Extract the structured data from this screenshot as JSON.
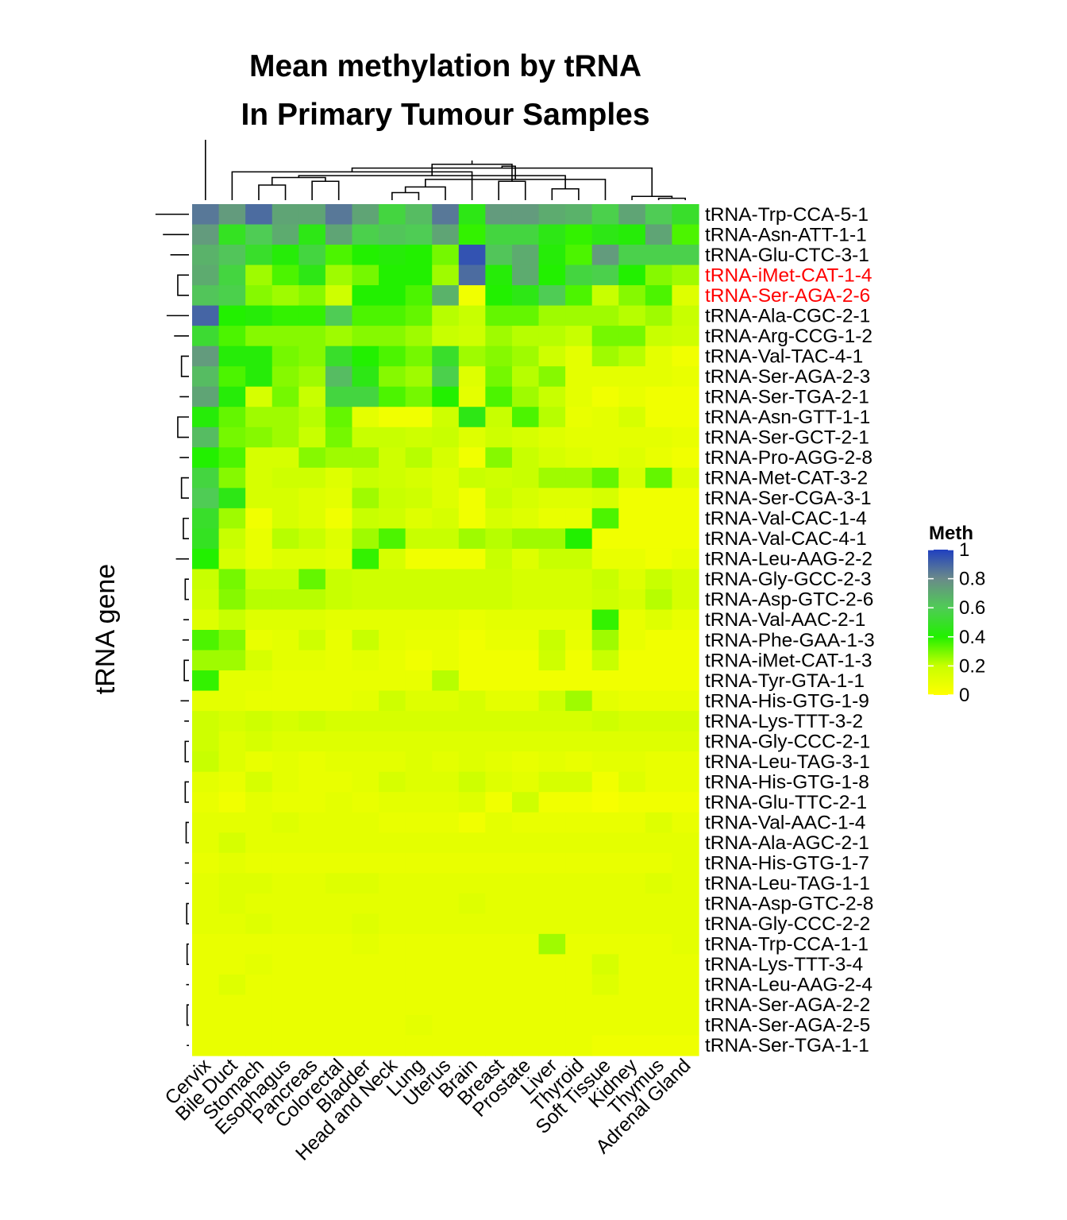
{
  "chart_data": {
    "type": "heatmap",
    "title": "Mean methylation by tRNA",
    "subtitle": "In Primary Tumour Samples",
    "xlabel": "",
    "ylabel": "tRNA gene",
    "legend_title": "Meth",
    "legend_ticks": [
      "1",
      "0.8",
      "0.6",
      "0.4",
      "0.2",
      "0"
    ],
    "legend_tick_values": [
      1,
      0.8,
      0.6,
      0.4,
      0.2,
      0
    ],
    "color_scale": {
      "low": "#ffff00",
      "mid1": "#c8ff00",
      "mid2": "#22f000",
      "mid3": "#4fcc55",
      "high_mid": "#6a8a8a",
      "high": "#2040c0"
    },
    "label_color_default": "#000000",
    "label_color_highlight": "#ff0000",
    "highlighted_rows": [
      "tRNA-iMet-CAT-1-4",
      "tRNA-Ser-AGA-2-6"
    ],
    "columns": [
      "Cervix",
      "Bile Duct",
      "Stomach",
      "Esophagus",
      "Pancreas",
      "Colorectal",
      "Bladder",
      "Head and Neck",
      "Lung",
      "Uterus",
      "Brain",
      "Breast",
      "Prostate",
      "Liver",
      "Thyroid",
      "Soft Tissue",
      "Kidney",
      "Thymus",
      "Adrenal Gland"
    ],
    "rows": [
      "tRNA-Trp-CCA-5-1",
      "tRNA-Asn-ATT-1-1",
      "tRNA-Glu-CTC-3-1",
      "tRNA-iMet-CAT-1-4",
      "tRNA-Ser-AGA-2-6",
      "tRNA-Ala-CGC-2-1",
      "tRNA-Arg-CCG-1-2",
      "tRNA-Val-TAC-4-1",
      "tRNA-Ser-AGA-2-3",
      "tRNA-Ser-TGA-2-1",
      "tRNA-Asn-GTT-1-1",
      "tRNA-Ser-GCT-2-1",
      "tRNA-Pro-AGG-2-8",
      "tRNA-Met-CAT-3-2",
      "tRNA-Ser-CGA-3-1",
      "tRNA-Val-CAC-1-4",
      "tRNA-Val-CAC-4-1",
      "tRNA-Leu-AAG-2-2",
      "tRNA-Gly-GCC-2-3",
      "tRNA-Asp-GTC-2-6",
      "tRNA-Val-AAC-2-1",
      "tRNA-Phe-GAA-1-3",
      "tRNA-iMet-CAT-1-3",
      "tRNA-Tyr-GTA-1-1",
      "tRNA-His-GTG-1-9",
      "tRNA-Lys-TTT-3-2",
      "tRNA-Gly-CCC-2-1",
      "tRNA-Leu-TAG-3-1",
      "tRNA-His-GTG-1-8",
      "tRNA-Glu-TTC-2-1",
      "tRNA-Val-AAC-1-4",
      "tRNA-Ala-AGC-2-1",
      "tRNA-His-GTG-1-7",
      "tRNA-Leu-TAG-1-1",
      "tRNA-Asp-GTC-2-8",
      "tRNA-Gly-CCC-2-2",
      "tRNA-Trp-CCA-1-1",
      "tRNA-Lys-TTT-3-4",
      "tRNA-Leu-AAG-2-4",
      "tRNA-Ser-AGA-2-2",
      "tRNA-Ser-AGA-2-5",
      "tRNA-Ser-TGA-1-1"
    ],
    "values": [
      [
        0.85,
        0.75,
        0.88,
        0.72,
        0.72,
        0.85,
        0.72,
        0.55,
        0.65,
        0.85,
        0.45,
        0.75,
        0.75,
        0.7,
        0.68,
        0.58,
        0.72,
        0.6,
        0.5
      ],
      [
        0.75,
        0.48,
        0.6,
        0.7,
        0.45,
        0.72,
        0.58,
        0.62,
        0.6,
        0.72,
        0.38,
        0.55,
        0.55,
        0.45,
        0.38,
        0.45,
        0.42,
        0.72,
        0.35
      ],
      [
        0.68,
        0.62,
        0.5,
        0.42,
        0.55,
        0.35,
        0.4,
        0.42,
        0.4,
        0.3,
        0.95,
        0.62,
        0.7,
        0.42,
        0.35,
        0.75,
        0.58,
        0.58,
        0.58
      ],
      [
        0.7,
        0.55,
        0.25,
        0.35,
        0.45,
        0.25,
        0.3,
        0.4,
        0.4,
        0.25,
        0.88,
        0.42,
        0.7,
        0.4,
        0.55,
        0.58,
        0.4,
        0.28,
        0.25
      ],
      [
        0.62,
        0.58,
        0.28,
        0.25,
        0.28,
        0.18,
        0.4,
        0.4,
        0.35,
        0.68,
        0.05,
        0.4,
        0.45,
        0.6,
        0.35,
        0.2,
        0.28,
        0.35,
        0.12
      ],
      [
        0.9,
        0.4,
        0.42,
        0.38,
        0.38,
        0.6,
        0.35,
        0.35,
        0.32,
        0.22,
        0.2,
        0.32,
        0.32,
        0.25,
        0.25,
        0.25,
        0.22,
        0.25,
        0.2
      ],
      [
        0.52,
        0.35,
        0.28,
        0.28,
        0.28,
        0.25,
        0.28,
        0.28,
        0.25,
        0.2,
        0.18,
        0.25,
        0.22,
        0.22,
        0.2,
        0.3,
        0.3,
        0.2,
        0.18
      ],
      [
        0.75,
        0.42,
        0.42,
        0.3,
        0.28,
        0.5,
        0.4,
        0.35,
        0.3,
        0.5,
        0.25,
        0.28,
        0.25,
        0.18,
        0.1,
        0.25,
        0.22,
        0.1,
        0.05
      ],
      [
        0.65,
        0.35,
        0.42,
        0.28,
        0.25,
        0.65,
        0.45,
        0.28,
        0.25,
        0.58,
        0.12,
        0.3,
        0.22,
        0.28,
        0.1,
        0.1,
        0.1,
        0.1,
        0.08
      ],
      [
        0.72,
        0.42,
        0.15,
        0.3,
        0.2,
        0.55,
        0.55,
        0.35,
        0.3,
        0.4,
        0.1,
        0.35,
        0.25,
        0.2,
        0.1,
        0.05,
        0.08,
        0.05,
        0.05
      ],
      [
        0.42,
        0.32,
        0.25,
        0.25,
        0.22,
        0.32,
        0.1,
        0.05,
        0.05,
        0.18,
        0.45,
        0.2,
        0.35,
        0.22,
        0.08,
        0.1,
        0.15,
        0.05,
        0.05
      ],
      [
        0.65,
        0.3,
        0.28,
        0.25,
        0.2,
        0.3,
        0.2,
        0.2,
        0.18,
        0.2,
        0.12,
        0.18,
        0.15,
        0.12,
        0.1,
        0.1,
        0.1,
        0.1,
        0.08
      ],
      [
        0.4,
        0.35,
        0.15,
        0.15,
        0.28,
        0.25,
        0.25,
        0.18,
        0.22,
        0.15,
        0.05,
        0.28,
        0.2,
        0.15,
        0.12,
        0.1,
        0.12,
        0.08,
        0.05
      ],
      [
        0.55,
        0.28,
        0.15,
        0.18,
        0.18,
        0.12,
        0.2,
        0.18,
        0.15,
        0.12,
        0.2,
        0.18,
        0.2,
        0.25,
        0.25,
        0.32,
        0.15,
        0.32,
        0.12
      ],
      [
        0.6,
        0.45,
        0.15,
        0.15,
        0.12,
        0.1,
        0.25,
        0.2,
        0.18,
        0.12,
        0.05,
        0.2,
        0.15,
        0.12,
        0.12,
        0.15,
        0.05,
        0.05,
        0.05
      ],
      [
        0.5,
        0.25,
        0.05,
        0.15,
        0.12,
        0.05,
        0.2,
        0.18,
        0.12,
        0.15,
        0.05,
        0.15,
        0.12,
        0.08,
        0.08,
        0.35,
        0.05,
        0.05,
        0.05
      ],
      [
        0.48,
        0.2,
        0.08,
        0.22,
        0.2,
        0.12,
        0.25,
        0.35,
        0.2,
        0.2,
        0.25,
        0.22,
        0.25,
        0.25,
        0.4,
        0.05,
        0.05,
        0.05,
        0.05
      ],
      [
        0.4,
        0.15,
        0.08,
        0.12,
        0.12,
        0.1,
        0.38,
        0.15,
        0.05,
        0.05,
        0.05,
        0.2,
        0.12,
        0.2,
        0.2,
        0.08,
        0.08,
        0.05,
        0.08
      ],
      [
        0.2,
        0.3,
        0.2,
        0.2,
        0.32,
        0.2,
        0.18,
        0.18,
        0.18,
        0.18,
        0.18,
        0.18,
        0.15,
        0.15,
        0.15,
        0.2,
        0.12,
        0.2,
        0.15
      ],
      [
        0.18,
        0.28,
        0.22,
        0.22,
        0.22,
        0.2,
        0.18,
        0.18,
        0.18,
        0.18,
        0.18,
        0.18,
        0.15,
        0.15,
        0.15,
        0.18,
        0.15,
        0.22,
        0.15
      ],
      [
        0.12,
        0.2,
        0.12,
        0.12,
        0.12,
        0.1,
        0.1,
        0.1,
        0.1,
        0.1,
        0.08,
        0.1,
        0.1,
        0.1,
        0.1,
        0.38,
        0.08,
        0.12,
        0.08
      ],
      [
        0.35,
        0.28,
        0.08,
        0.1,
        0.18,
        0.08,
        0.2,
        0.1,
        0.08,
        0.08,
        0.05,
        0.08,
        0.08,
        0.2,
        0.08,
        0.25,
        0.08,
        0.05,
        0.05
      ],
      [
        0.25,
        0.25,
        0.15,
        0.1,
        0.1,
        0.08,
        0.1,
        0.08,
        0.05,
        0.08,
        0.05,
        0.05,
        0.05,
        0.18,
        0.05,
        0.2,
        0.05,
        0.05,
        0.05
      ],
      [
        0.38,
        0.1,
        0.1,
        0.08,
        0.08,
        0.08,
        0.08,
        0.08,
        0.08,
        0.22,
        0.05,
        0.05,
        0.05,
        0.05,
        0.05,
        0.05,
        0.05,
        0.05,
        0.05
      ],
      [
        0.1,
        0.1,
        0.08,
        0.08,
        0.08,
        0.08,
        0.1,
        0.18,
        0.12,
        0.12,
        0.15,
        0.1,
        0.1,
        0.18,
        0.25,
        0.1,
        0.08,
        0.08,
        0.08
      ],
      [
        0.18,
        0.15,
        0.18,
        0.15,
        0.18,
        0.15,
        0.15,
        0.15,
        0.15,
        0.15,
        0.15,
        0.15,
        0.15,
        0.15,
        0.15,
        0.18,
        0.15,
        0.15,
        0.15
      ],
      [
        0.18,
        0.12,
        0.15,
        0.12,
        0.12,
        0.12,
        0.12,
        0.12,
        0.12,
        0.12,
        0.12,
        0.12,
        0.12,
        0.12,
        0.12,
        0.12,
        0.12,
        0.12,
        0.12
      ],
      [
        0.2,
        0.12,
        0.08,
        0.1,
        0.08,
        0.1,
        0.1,
        0.1,
        0.12,
        0.1,
        0.12,
        0.1,
        0.08,
        0.1,
        0.08,
        0.1,
        0.1,
        0.08,
        0.08
      ],
      [
        0.1,
        0.08,
        0.15,
        0.1,
        0.08,
        0.08,
        0.1,
        0.15,
        0.12,
        0.12,
        0.18,
        0.12,
        0.1,
        0.15,
        0.15,
        0.05,
        0.12,
        0.08,
        0.08
      ],
      [
        0.08,
        0.05,
        0.1,
        0.08,
        0.08,
        0.1,
        0.08,
        0.1,
        0.1,
        0.1,
        0.12,
        0.05,
        0.18,
        0.05,
        0.05,
        0.03,
        0.05,
        0.05,
        0.05
      ],
      [
        0.1,
        0.1,
        0.1,
        0.12,
        0.1,
        0.1,
        0.1,
        0.08,
        0.08,
        0.08,
        0.05,
        0.1,
        0.08,
        0.08,
        0.08,
        0.08,
        0.08,
        0.12,
        0.08
      ],
      [
        0.1,
        0.15,
        0.1,
        0.1,
        0.1,
        0.1,
        0.1,
        0.1,
        0.1,
        0.1,
        0.1,
        0.1,
        0.1,
        0.1,
        0.1,
        0.1,
        0.1,
        0.1,
        0.1
      ],
      [
        0.08,
        0.1,
        0.08,
        0.08,
        0.08,
        0.08,
        0.08,
        0.08,
        0.08,
        0.08,
        0.08,
        0.08,
        0.08,
        0.08,
        0.08,
        0.08,
        0.08,
        0.08,
        0.1
      ],
      [
        0.1,
        0.12,
        0.12,
        0.1,
        0.1,
        0.12,
        0.12,
        0.1,
        0.1,
        0.1,
        0.1,
        0.1,
        0.1,
        0.1,
        0.1,
        0.1,
        0.1,
        0.12,
        0.1
      ],
      [
        0.1,
        0.12,
        0.1,
        0.1,
        0.1,
        0.1,
        0.1,
        0.1,
        0.1,
        0.1,
        0.12,
        0.1,
        0.1,
        0.1,
        0.1,
        0.1,
        0.1,
        0.1,
        0.1
      ],
      [
        0.1,
        0.1,
        0.12,
        0.1,
        0.1,
        0.1,
        0.12,
        0.1,
        0.1,
        0.1,
        0.1,
        0.1,
        0.1,
        0.1,
        0.1,
        0.1,
        0.1,
        0.1,
        0.1
      ],
      [
        0.08,
        0.08,
        0.08,
        0.08,
        0.08,
        0.08,
        0.1,
        0.08,
        0.08,
        0.08,
        0.08,
        0.08,
        0.08,
        0.25,
        0.08,
        0.08,
        0.08,
        0.08,
        0.1
      ],
      [
        0.08,
        0.08,
        0.1,
        0.08,
        0.08,
        0.08,
        0.08,
        0.08,
        0.08,
        0.08,
        0.08,
        0.08,
        0.08,
        0.08,
        0.08,
        0.15,
        0.08,
        0.08,
        0.08
      ],
      [
        0.08,
        0.12,
        0.08,
        0.08,
        0.08,
        0.08,
        0.08,
        0.08,
        0.08,
        0.08,
        0.08,
        0.08,
        0.08,
        0.08,
        0.08,
        0.12,
        0.08,
        0.08,
        0.08
      ],
      [
        0.08,
        0.08,
        0.08,
        0.08,
        0.08,
        0.08,
        0.08,
        0.08,
        0.08,
        0.08,
        0.08,
        0.08,
        0.08,
        0.08,
        0.08,
        0.08,
        0.08,
        0.08,
        0.08
      ],
      [
        0.08,
        0.08,
        0.08,
        0.08,
        0.08,
        0.08,
        0.08,
        0.08,
        0.1,
        0.08,
        0.08,
        0.08,
        0.08,
        0.08,
        0.08,
        0.08,
        0.08,
        0.08,
        0.08
      ],
      [
        0.08,
        0.08,
        0.08,
        0.08,
        0.08,
        0.08,
        0.08,
        0.08,
        0.08,
        0.08,
        0.08,
        0.08,
        0.08,
        0.08,
        0.08,
        0.06,
        0.06,
        0.06,
        0.06
      ]
    ],
    "col_dendrogram": [
      [
        7,
        8,
        0.04
      ],
      [
        9,
        19,
        0.07
      ],
      [
        17,
        18,
        0.01
      ],
      [
        16,
        21,
        0.02
      ],
      [
        1,
        10,
        0.15
      ],
      [
        13,
        14,
        0.06
      ],
      [
        2,
        3,
        0.08
      ],
      [
        4,
        5,
        0.1
      ],
      [
        25,
        26,
        0.12
      ],
      [
        15,
        20,
        0.11
      ],
      [
        11,
        12,
        0.1
      ],
      [
        24,
        27,
        0.13
      ],
      [
        22,
        23,
        0.17
      ],
      [
        28,
        31,
        0.18
      ],
      [
        29,
        30,
        0.19
      ],
      [
        33,
        34,
        0.21
      ],
      [
        35,
        32,
        0.25
      ],
      [
        0,
        36,
        0.32
      ]
    ],
    "row_dendrogram": [
      [
        39,
        40,
        0.01
      ],
      [
        41,
        60,
        0.012
      ],
      [
        38,
        61,
        0.015
      ],
      [
        36,
        37,
        0.01
      ],
      [
        63,
        62,
        0.02
      ],
      [
        34,
        35,
        0.012
      ],
      [
        33,
        65,
        0.02
      ],
      [
        64,
        66,
        0.025
      ],
      [
        30,
        31,
        0.015
      ],
      [
        32,
        68,
        0.022
      ],
      [
        67,
        69,
        0.03
      ],
      [
        28,
        29,
        0.02
      ],
      [
        26,
        27,
        0.02
      ],
      [
        25,
        72,
        0.025
      ],
      [
        71,
        73,
        0.032
      ],
      [
        70,
        74,
        0.04
      ],
      [
        24,
        75,
        0.045
      ],
      [
        18,
        19,
        0.02
      ],
      [
        20,
        77,
        0.03
      ],
      [
        22,
        23,
        0.025
      ],
      [
        21,
        79,
        0.035
      ],
      [
        78,
        80,
        0.04
      ],
      [
        81,
        76,
        0.08
      ],
      [
        15,
        16,
        0.03
      ],
      [
        13,
        14,
        0.04
      ],
      [
        12,
        84,
        0.05
      ],
      [
        83,
        85,
        0.06
      ],
      [
        17,
        86,
        0.07
      ],
      [
        10,
        11,
        0.06
      ],
      [
        88,
        87,
        0.08
      ],
      [
        7,
        8,
        0.04
      ],
      [
        9,
        90,
        0.05
      ],
      [
        6,
        91,
        0.08
      ],
      [
        5,
        92,
        0.12
      ],
      [
        93,
        89,
        0.14
      ],
      [
        94,
        82,
        0.18
      ],
      [
        3,
        4,
        0.06
      ],
      [
        2,
        96,
        0.1
      ],
      [
        1,
        97,
        0.14
      ],
      [
        0,
        98,
        0.18
      ],
      [
        99,
        95,
        0.32
      ]
    ]
  }
}
